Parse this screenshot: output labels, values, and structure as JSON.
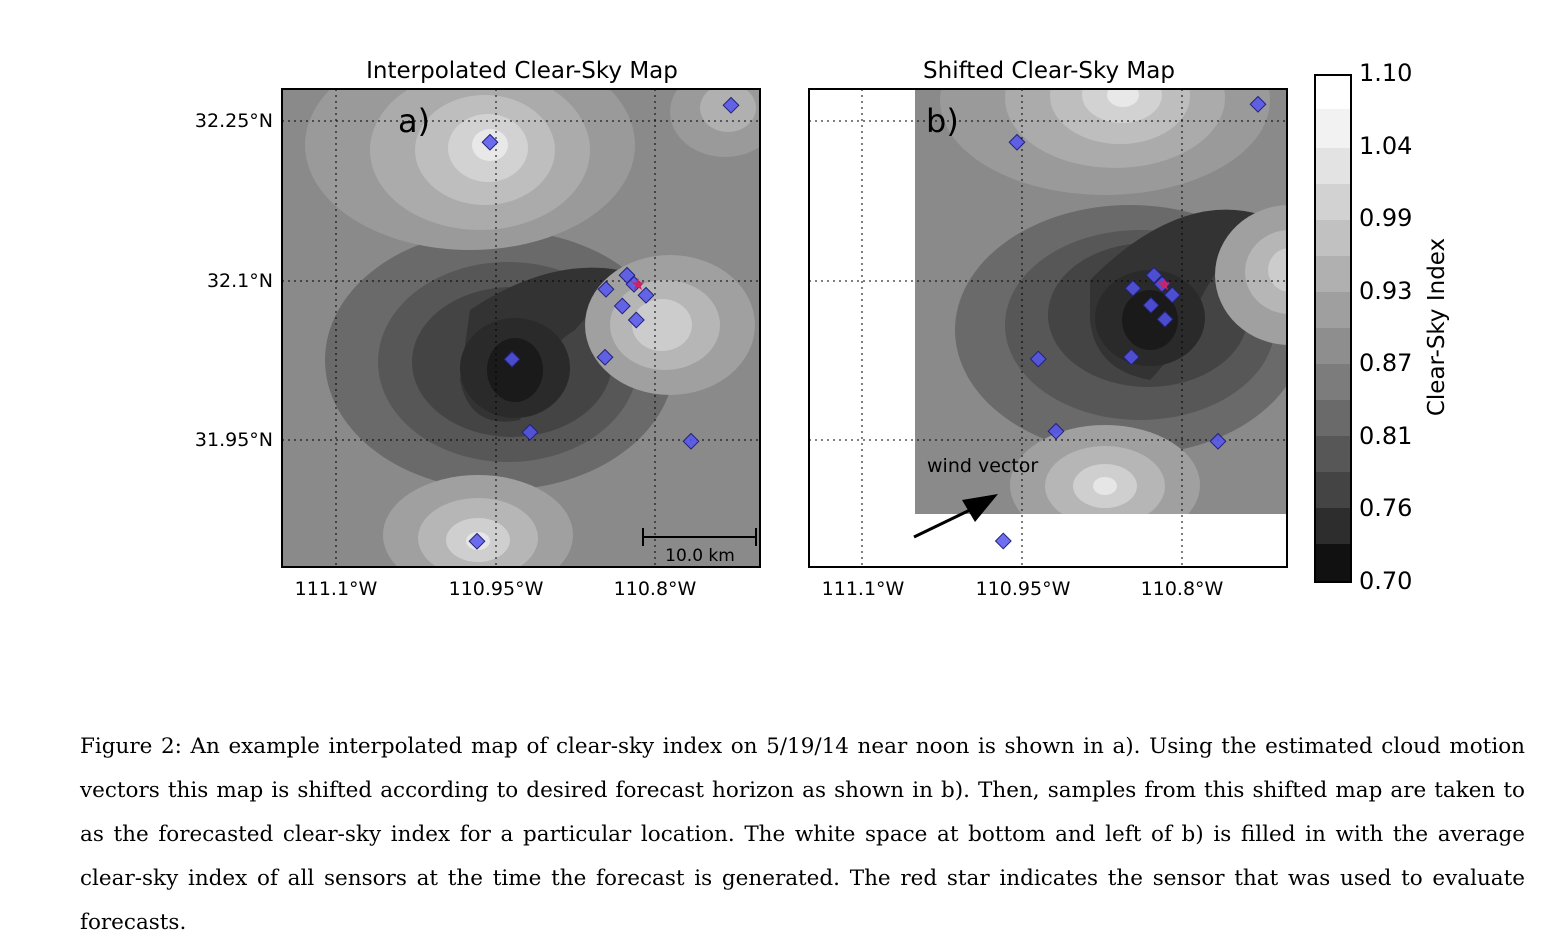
{
  "figure": {
    "panel_a": {
      "title": "Interpolated Clear-Sky Map",
      "label": "a)",
      "scale_bar": "10.0 km"
    },
    "panel_b": {
      "title": "Shifted Clear-Sky Map",
      "label": "b)",
      "annotation": "wind vector"
    },
    "lat_ticks": [
      "32.25°N",
      "32.1°N",
      "31.95°N"
    ],
    "lon_ticks": [
      "111.1°W",
      "110.95°W",
      "110.8°W"
    ],
    "colorbar": {
      "label": "Clear-Sky Index",
      "ticks": [
        "1.10",
        "1.04",
        "0.99",
        "0.93",
        "0.87",
        "0.81",
        "0.76",
        "0.70"
      ]
    },
    "colors": {
      "sensor_marker": "#5555ee",
      "evaluation_star": "#cc2266"
    }
  },
  "caption": {
    "text": "Figure 2: An example interpolated map of clear-sky index on 5/19/14 near noon is shown in a). Using the estimated cloud motion vectors this map is shifted according to desired forecast horizon as shown in b). Then, samples from this shifted map are taken to as the forecasted clear-sky index for a particular location. The white space at bottom and left of b) is filled in with the average clear-sky index of all sensors at the time the forecast is generated. The red star indicates the sensor that was used to evaluate forecasts."
  }
}
